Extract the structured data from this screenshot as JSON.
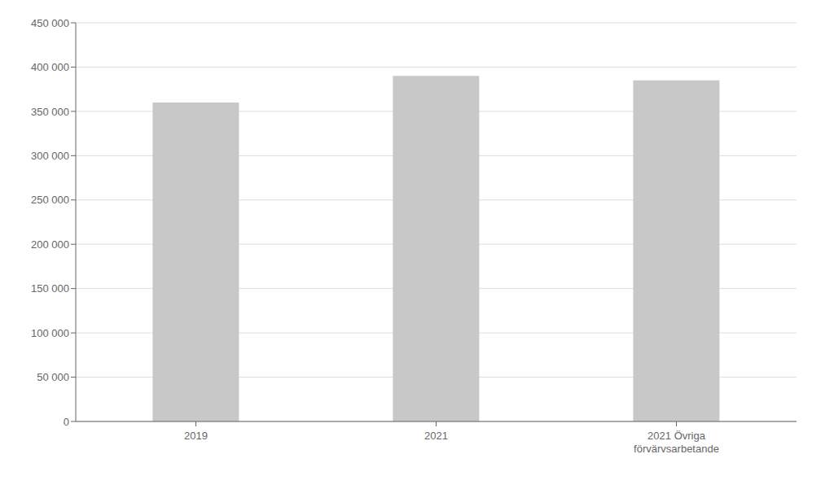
{
  "chart_data": {
    "type": "bar",
    "categories": [
      "2019",
      "2021",
      "2021 Övriga\nförvärvsarbetande"
    ],
    "values": [
      360000,
      390000,
      385000
    ],
    "color": "#c8c8c8",
    "ylim": [
      0,
      450000
    ],
    "yticks": [
      0,
      {
        "value": 50000,
        "label": "50 000"
      },
      {
        "value": 100000,
        "label": "100 000"
      },
      {
        "value": 150000,
        "label": "150 000"
      },
      {
        "value": 200000,
        "label": "200 000"
      },
      {
        "value": 250000,
        "label": "250 000"
      },
      {
        "value": 300000,
        "label": "300 000"
      },
      {
        "value": 350000,
        "label": "350 000"
      },
      {
        "value": 400000,
        "label": "400 000"
      },
      {
        "value": 450000,
        "label": "450 000"
      }
    ],
    "grid": true
  }
}
